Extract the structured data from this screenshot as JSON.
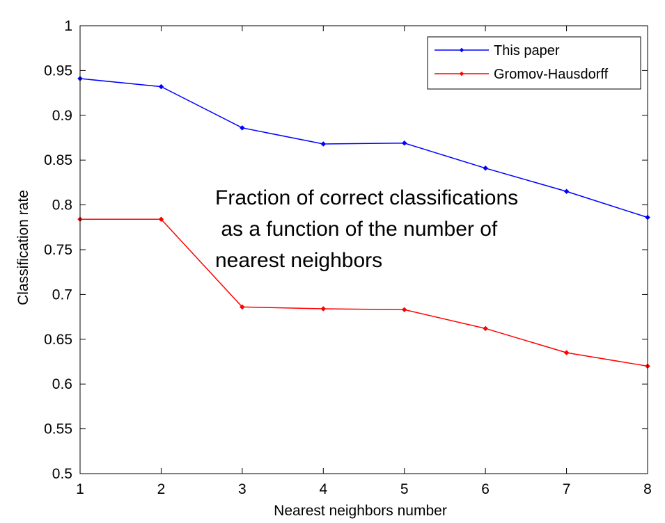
{
  "chart_data": {
    "type": "line",
    "xlabel": "Nearest neighbors number",
    "ylabel": "Classification rate",
    "xlim": [
      1,
      8
    ],
    "ylim": [
      0.5,
      1
    ],
    "x": [
      1,
      2,
      3,
      4,
      5,
      6,
      7,
      8
    ],
    "xticks": [
      "1",
      "2",
      "3",
      "4",
      "5",
      "6",
      "7",
      "8"
    ],
    "yticks": [
      "0.5",
      "0.55",
      "0.6",
      "0.65",
      "0.7",
      "0.75",
      "0.8",
      "0.85",
      "0.9",
      "0.95",
      "1"
    ],
    "grid": false,
    "legend_position": "top-right",
    "series": [
      {
        "name": "This paper",
        "color": "#0000ff",
        "values": [
          0.941,
          0.932,
          0.886,
          0.868,
          0.869,
          0.841,
          0.815,
          0.786
        ]
      },
      {
        "name": "Gromov-Hausdorff",
        "color": "#ff0000",
        "values": [
          0.784,
          0.784,
          0.686,
          0.684,
          0.683,
          0.662,
          0.635,
          0.62
        ]
      }
    ],
    "annotation": [
      "Fraction of correct classifications",
      " as a function of the number of",
      "nearest neighbors"
    ]
  }
}
